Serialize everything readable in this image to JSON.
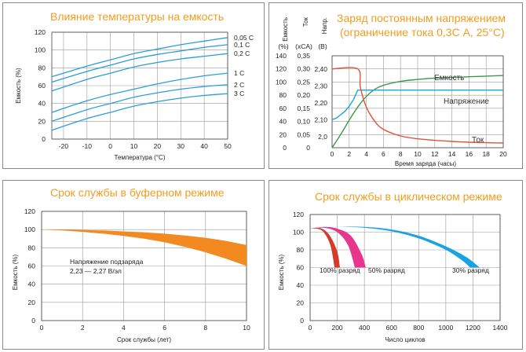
{
  "colors": {
    "title": "#f39c1f",
    "blue": "#2a9fd6",
    "green": "#3a9a4a",
    "red": "#e0533a",
    "orange": "#f28a21",
    "maroon": "#d63a2a",
    "magenta": "#e8368f",
    "sky": "#1aa3e3"
  },
  "chart_data": [
    {
      "type": "line",
      "title": "Влияние температуры на емкость",
      "xlabel": "Температура (°С)",
      "ylabel": "Емкость (%)",
      "xlim": [
        -25,
        50
      ],
      "ylim": [
        0,
        120
      ],
      "xticks": [
        "-20",
        "-10",
        "0",
        "10",
        "20",
        "30",
        "40",
        "50"
      ],
      "yticks": [
        "0",
        "20",
        "40",
        "60",
        "80",
        "100",
        "120"
      ],
      "grid": true,
      "series": [
        {
          "name": "0,05 С",
          "x": [
            -25,
            -10,
            0,
            10,
            20,
            30,
            40,
            50
          ],
          "y": [
            70,
            82,
            89,
            96,
            101,
            106,
            110,
            114
          ]
        },
        {
          "name": "0,1 С",
          "x": [
            -25,
            -10,
            0,
            10,
            20,
            30,
            40,
            50
          ],
          "y": [
            64,
            76,
            83,
            90,
            95,
            99,
            103,
            106
          ]
        },
        {
          "name": "0,2 С",
          "x": [
            -25,
            -10,
            0,
            10,
            20,
            30,
            40,
            50
          ],
          "y": [
            54,
            67,
            74,
            81,
            86,
            90,
            93,
            96
          ]
        },
        {
          "name": "1 С",
          "x": [
            -25,
            -10,
            0,
            10,
            20,
            30,
            40,
            50
          ],
          "y": [
            30,
            43,
            50,
            56,
            62,
            67,
            71,
            74
          ]
        },
        {
          "name": "2 С",
          "x": [
            -25,
            -10,
            0,
            10,
            20,
            30,
            40,
            50
          ],
          "y": [
            20,
            33,
            40,
            47,
            52,
            56,
            59,
            61
          ]
        },
        {
          "name": "3 С",
          "x": [
            -25,
            -10,
            0,
            10,
            20,
            30,
            40,
            50
          ],
          "y": [
            10,
            23,
            30,
            37,
            42,
            46,
            49,
            51
          ]
        }
      ]
    },
    {
      "type": "line",
      "title": "Заряд постоянным напряжением",
      "subtitle": "(ограничение тока 0,3С А, 25°С)",
      "xlabel": "Время заряда (часы)",
      "xlim": [
        0,
        20
      ],
      "xticks": [
        "0",
        "2",
        "4",
        "6",
        "8",
        "10",
        "12",
        "14",
        "16",
        "18",
        "20"
      ],
      "axes": [
        {
          "header": "Емкость",
          "unit": "(%)",
          "ticks": [
            "0",
            "20",
            "40",
            "60",
            "80",
            "100",
            "120",
            "140"
          ]
        },
        {
          "header": "Ток",
          "unit": "(xCA)",
          "ticks": [
            "0",
            "0,05",
            "0,10",
            "0,15",
            "0,20",
            "0,25",
            "0,30",
            "0,35"
          ]
        },
        {
          "header": "Напр.",
          "unit": "(В)",
          "ticks": [
            "2,0",
            "2,10",
            "2,20",
            "2,30",
            "2,40"
          ]
        }
      ],
      "grid": true,
      "series": [
        {
          "name": "Емкость",
          "axis": "Емкость (%)",
          "x": [
            0,
            1,
            2,
            3,
            4,
            5,
            6,
            8,
            10,
            12,
            14,
            16,
            18,
            20
          ],
          "y": [
            0,
            20,
            42,
            62,
            78,
            89,
            95,
            101,
            104,
            106,
            107,
            108,
            109,
            110
          ]
        },
        {
          "name": "Напряжение",
          "axis": "Напр. (В)",
          "x": [
            0,
            0.5,
            1,
            1.5,
            2,
            2.5,
            3,
            20
          ],
          "y": [
            2.1,
            2.11,
            2.13,
            2.15,
            2.18,
            2.22,
            2.275,
            2.275
          ]
        },
        {
          "name": "Ток",
          "axis": "Ток (xCA)",
          "x": [
            0,
            3,
            3.3,
            4,
            5,
            6,
            8,
            10,
            12,
            14,
            16,
            18,
            20
          ],
          "y": [
            0.3,
            0.3,
            0.23,
            0.155,
            0.1,
            0.07,
            0.045,
            0.034,
            0.028,
            0.024,
            0.021,
            0.019,
            0.018
          ]
        }
      ]
    },
    {
      "type": "area",
      "title": "Срок службы в буферном режиме",
      "xlabel": "Срок службы (лет)",
      "ylabel": "Емкость (%)",
      "xlim": [
        0,
        10
      ],
      "ylim": [
        0,
        120
      ],
      "xticks": [
        "0",
        "2",
        "4",
        "6",
        "8",
        "10"
      ],
      "yticks": [
        "0",
        "20",
        "40",
        "60",
        "80",
        "100",
        "120"
      ],
      "grid": true,
      "annotation": [
        "Напряжение подзаряда",
        "2,23 — 2,27 В/эл"
      ],
      "band": {
        "x": [
          0,
          1,
          2,
          3,
          4,
          5,
          6,
          7,
          8,
          9,
          10
        ],
        "upper": [
          100,
          100,
          99.5,
          99,
          98,
          97,
          95.5,
          93.5,
          91,
          87.5,
          83
        ],
        "lower": [
          100,
          99,
          97.5,
          95.5,
          93,
          90,
          86,
          81,
          75,
          68,
          60
        ]
      }
    },
    {
      "type": "area",
      "title": "Срок службы в циклическом режиме",
      "xlabel": "Число циклов",
      "ylabel": "Емкость (%)",
      "xlim": [
        0,
        1400
      ],
      "ylim": [
        0,
        120
      ],
      "xticks": [
        "0",
        "200",
        "400",
        "600",
        "800",
        "1000",
        "1200",
        "1400"
      ],
      "yticks": [
        "0",
        "20",
        "40",
        "60",
        "80",
        "100",
        "120"
      ],
      "grid": true,
      "series": [
        {
          "name": "100% разряд",
          "upper": {
            "x": [
              0,
              50,
              100,
              150,
              200,
              220
            ],
            "y": [
              104,
              105,
              103,
              95,
              78,
              60
            ]
          },
          "lower": {
            "x": [
              0,
              50,
              100,
              150,
              180
            ],
            "y": [
              104,
              104,
              100,
              85,
              60
            ]
          }
        },
        {
          "name": "50% разряд",
          "upper": {
            "x": [
              0,
              100,
              200,
              300,
              380,
              410
            ],
            "y": [
              104,
              106,
              104,
              96,
              75,
              60
            ]
          },
          "lower": {
            "x": [
              0,
              100,
              200,
              280,
              330
            ],
            "y": [
              104,
              105,
              100,
              85,
              60
            ]
          }
        },
        {
          "name": "30% разряд",
          "upper": {
            "x": [
              0,
              200,
              400,
              600,
              800,
              1000,
              1150,
              1250
            ],
            "y": [
              104,
              106,
              106,
              103,
              96,
              84,
              72,
              60
            ]
          },
          "lower": {
            "x": [
              0,
              200,
              400,
              600,
              800,
              1000,
              1120,
              1180
            ],
            "y": [
              104,
              106,
              105,
              101,
              93,
              80,
              68,
              60
            ]
          }
        }
      ]
    }
  ]
}
